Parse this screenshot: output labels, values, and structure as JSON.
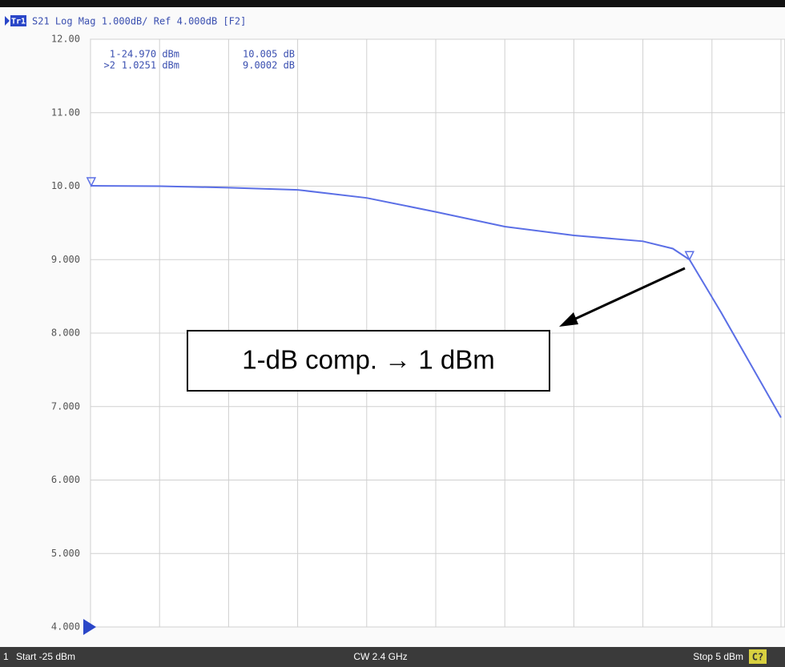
{
  "chart_data": {
    "type": "line",
    "trace_badge": "Tr1",
    "title": "S21 Log Mag 1.000dB/ Ref 4.000dB [F2]",
    "x": [
      -25,
      -22,
      -19,
      -16,
      -13,
      -10,
      -7,
      -4,
      -1,
      0.3,
      1.0251,
      2.4,
      5
    ],
    "series": [
      {
        "name": "S21",
        "color": "#5b6fe6",
        "values": [
          10.005,
          10.0,
          9.98,
          9.95,
          9.84,
          9.65,
          9.45,
          9.33,
          9.25,
          9.15,
          9.0002,
          8.28,
          6.85
        ]
      }
    ],
    "xlim": [
      -25,
      5
    ],
    "xticks": [
      -25,
      -22,
      -19,
      -16,
      -13,
      -10,
      -7,
      -4,
      -1,
      2,
      5
    ],
    "ylim": [
      4,
      12
    ],
    "yticks": [
      {
        "value": 12,
        "label": "12.00"
      },
      {
        "value": 11,
        "label": "11.00"
      },
      {
        "value": 10,
        "label": "10.00"
      },
      {
        "value": 9,
        "label": "9.000"
      },
      {
        "value": 8,
        "label": "8.000"
      },
      {
        "value": 7,
        "label": "7.000"
      },
      {
        "value": 6,
        "label": "6.000"
      },
      {
        "value": 5,
        "label": "5.000"
      },
      {
        "value": 4,
        "label": "4.000"
      }
    ],
    "grid": true,
    "markers": [
      {
        "label": "1",
        "x": -24.97,
        "x_label": "-24.970 dBm",
        "y": 10.005,
        "y_label": "10.005 dB"
      },
      {
        "label": ">2",
        "x": 1.0251,
        "x_label": "1.0251 dBm",
        "y": 9.0002,
        "y_label": "9.0002 dB"
      }
    ],
    "annotation": "1-dB comp. → 1 dBm",
    "footer": {
      "channel": "1",
      "start": "Start -25 dBm",
      "center": "CW 2.4 GHz",
      "stop": "Stop 5 dBm",
      "status": "C?"
    }
  }
}
